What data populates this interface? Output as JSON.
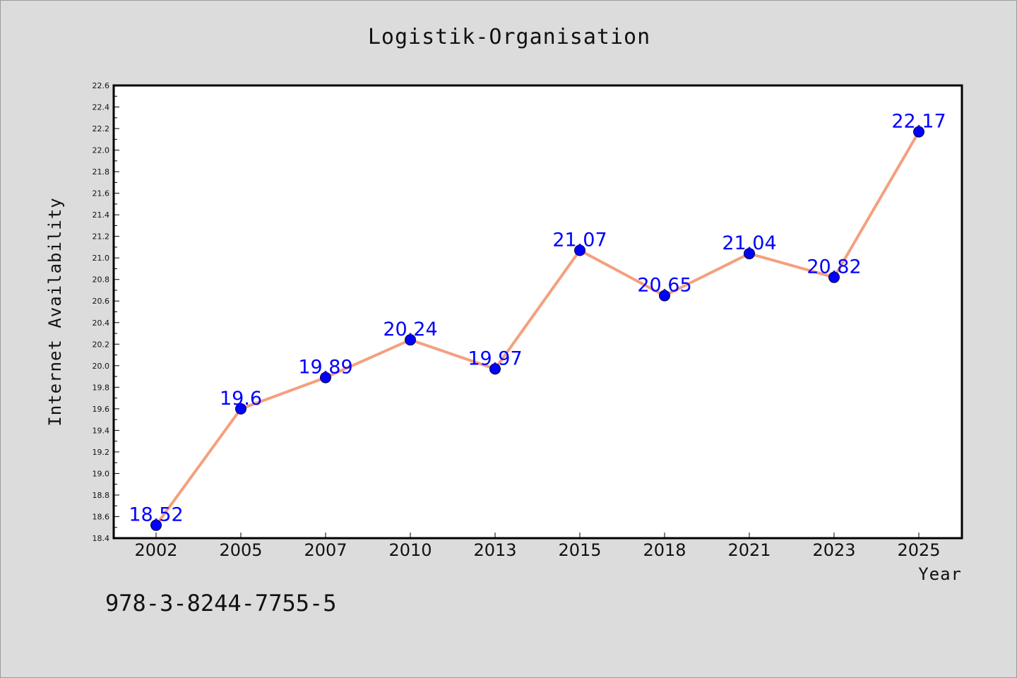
{
  "chart_data": {
    "type": "line",
    "title": "Logistik-Organisation",
    "xlabel": "Year",
    "ylabel": "Internet Availability",
    "categories": [
      "2002",
      "2005",
      "2007",
      "2010",
      "2013",
      "2015",
      "2018",
      "2021",
      "2023",
      "2025"
    ],
    "series": [
      {
        "values": [
          18.52,
          19.6,
          19.89,
          20.24,
          19.97,
          21.07,
          20.65,
          21.04,
          20.82,
          22.17
        ],
        "data_labels": [
          "18.52",
          "19.6",
          "19.89",
          "20.24",
          "19.97",
          "21.07",
          "20.65",
          "21.04",
          "20.82",
          "22.17"
        ],
        "line_color": "#f4a07e",
        "marker_color": "#0000ff"
      }
    ],
    "ylim": [
      18.4,
      22.6
    ],
    "yticks": [
      "18.4",
      "18.6",
      "18.8",
      "19.0",
      "19.2",
      "19.4",
      "19.6",
      "19.8",
      "20.0",
      "20.2",
      "20.4",
      "20.6",
      "20.8",
      "21.0",
      "21.2",
      "21.4",
      "21.6",
      "21.8",
      "22.0",
      "22.2",
      "22.4",
      "22.6"
    ],
    "grid": false,
    "legend": "none"
  },
  "footnote": "978-3-8244-7755-5",
  "colors": {
    "background": "#dcdcdc",
    "plot_background": "#ffffff",
    "line": "#f4a07e",
    "marker": "#0000ff",
    "data_label": "#0000ff"
  }
}
